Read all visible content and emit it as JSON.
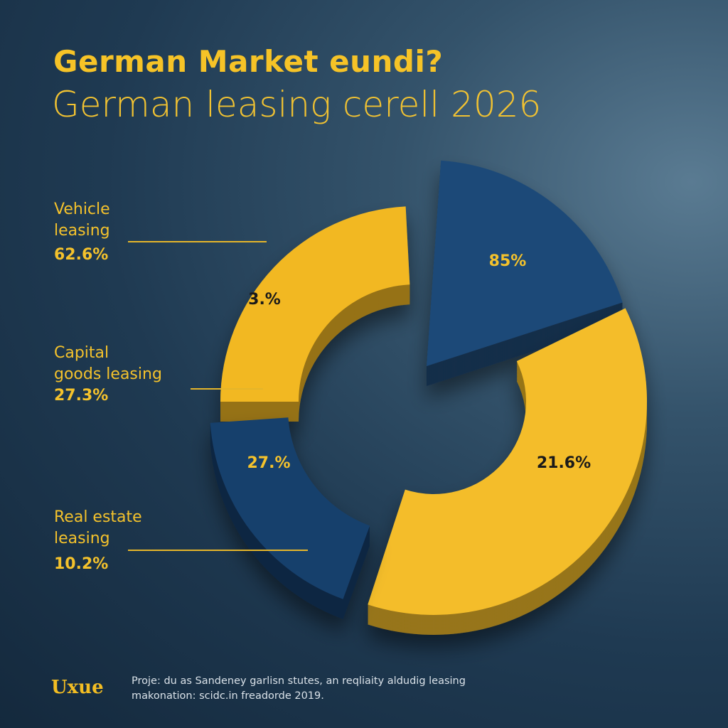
{
  "title": "German Market eundi?",
  "subtitle": "German leasing cerell 2026",
  "legend_labels": [
    {
      "name": "Vehicle leasing",
      "line1": "Vehicle",
      "line2": "leasing",
      "value": "62.6%"
    },
    {
      "name": "Capital goods leasing",
      "line1": "Capital",
      "line2": "goods leasing",
      "value": "27.3%"
    },
    {
      "name": "Real estate leasing",
      "line1": "Real estate",
      "line2": "leasing",
      "value": "10.2%"
    }
  ],
  "chart_data": {
    "type": "pie",
    "title": "German Market eundi?",
    "subtitle": "German leasing cerell 2026",
    "style": "3D exploded donut",
    "segments": [
      {
        "label": "3.%",
        "color": "#f2b824"
      },
      {
        "label": "85%",
        "color": "#1d4a78"
      },
      {
        "label": "21.6%",
        "color": "#f4bd2a"
      },
      {
        "label": "27.%",
        "color": "#173f6c"
      }
    ]
  },
  "footer": {
    "logo": "Uxue",
    "note": "Proje: du as Sandeney garlisn stutes, an reqliaity aldudig leasing makonation: scidc.in freadorde 2019."
  },
  "colors": {
    "accent": "#f6c327",
    "blue": "#1d4a78",
    "background": "#1f3a52"
  }
}
